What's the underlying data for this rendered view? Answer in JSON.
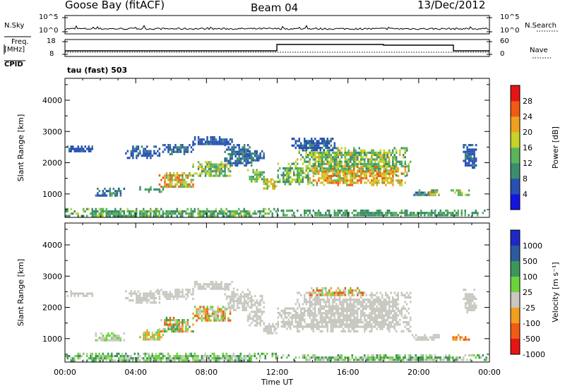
{
  "header": {
    "station": "Goose Bay (fitACF)",
    "beam": "Beam 04",
    "date": "13/Dec/2012"
  },
  "strips": {
    "nsky_label": "N.Sky",
    "nsky_ticks": [
      "10^5",
      "10^0"
    ],
    "nsearch_label": "N.Search",
    "nsearch_ticks": [
      "10^5",
      "10^0"
    ],
    "freq_label": "Freq.",
    "freq_unit": "[MHz]",
    "freq_ticks": [
      "18",
      "8"
    ],
    "nave_label": "Nave",
    "nave_ticks": [
      "60",
      "0"
    ],
    "cpid_label": "CPID",
    "cpid_value": "tau (fast) 503"
  },
  "chart_data": [
    {
      "type": "heatmap",
      "name": "power-panel",
      "ylabel": "Slant Range [km]",
      "xlabel": "",
      "ylim": [
        250,
        4700
      ],
      "yticks": [
        1000,
        2000,
        3000,
        4000
      ],
      "xlim_hours": [
        0,
        24
      ],
      "color_label": "Power [dB]",
      "color_ticks": [
        "4",
        "8",
        "12",
        "16",
        "20",
        "24",
        "28"
      ],
      "colors": [
        "#1414e0",
        "#2850b4",
        "#3c8c6e",
        "#5ab45a",
        "#c8d228",
        "#f0a01e",
        "#f05a14",
        "#e61414"
      ],
      "regions": [
        {
          "t": [
            0,
            12
          ],
          "r": [
            300,
            550
          ],
          "v": [
            8,
            16
          ]
        },
        {
          "t": [
            0.1,
            1.7
          ],
          "r": [
            2350,
            2550
          ],
          "v": [
            4,
            8
          ]
        },
        {
          "t": [
            1.7,
            3.3
          ],
          "r": [
            950,
            1200
          ],
          "v": [
            6,
            12
          ]
        },
        {
          "t": [
            3.4,
            5.3
          ],
          "r": [
            2150,
            2550
          ],
          "v": [
            4,
            8
          ]
        },
        {
          "t": [
            4.2,
            5.5
          ],
          "r": [
            1100,
            1250
          ],
          "v": [
            8,
            14
          ]
        },
        {
          "t": [
            5.3,
            7.2
          ],
          "r": [
            1200,
            1700
          ],
          "v": [
            12,
            26
          ]
        },
        {
          "t": [
            7.2,
            9.3
          ],
          "r": [
            1550,
            2050
          ],
          "v": [
            10,
            20
          ]
        },
        {
          "t": [
            5.2,
            7.2
          ],
          "r": [
            2300,
            2600
          ],
          "v": [
            4,
            8
          ]
        },
        {
          "t": [
            7.2,
            9.5
          ],
          "r": [
            2600,
            2850
          ],
          "v": [
            4,
            8
          ]
        },
        {
          "t": [
            9.0,
            10.5
          ],
          "r": [
            1900,
            2600
          ],
          "v": [
            4,
            10
          ]
        },
        {
          "t": [
            10.3,
            11.2
          ],
          "r": [
            2000,
            2400
          ],
          "v": [
            4,
            10
          ]
        },
        {
          "t": [
            10.3,
            11.2
          ],
          "r": [
            1400,
            1800
          ],
          "v": [
            10,
            18
          ]
        },
        {
          "t": [
            11.2,
            11.9
          ],
          "r": [
            1150,
            1500
          ],
          "v": [
            12,
            22
          ]
        },
        {
          "t": [
            12.0,
            13.7
          ],
          "r": [
            1300,
            2000
          ],
          "v": [
            8,
            18
          ]
        },
        {
          "t": [
            13.0,
            19.5
          ],
          "r": [
            1600,
            2500
          ],
          "v": [
            8,
            20
          ]
        },
        {
          "t": [
            13.8,
            19.2
          ],
          "r": [
            1250,
            1900
          ],
          "v": [
            14,
            26
          ]
        },
        {
          "t": [
            12.8,
            15.2
          ],
          "r": [
            2400,
            2800
          ],
          "v": [
            4,
            8
          ]
        },
        {
          "t": [
            19.6,
            21.1
          ],
          "r": [
            950,
            1150
          ],
          "v": [
            6,
            14
          ]
        },
        {
          "t": [
            20.6,
            21.1
          ],
          "r": [
            1000,
            1100
          ],
          "v": [
            16,
            26
          ]
        },
        {
          "t": [
            21.8,
            22.8
          ],
          "r": [
            950,
            1150
          ],
          "v": [
            12,
            22
          ]
        },
        {
          "t": [
            22.5,
            23.2
          ],
          "r": [
            1850,
            2600
          ],
          "v": [
            4,
            8
          ]
        },
        {
          "t": [
            12.0,
            23.8
          ],
          "r": [
            300,
            500
          ],
          "v": [
            8,
            14
          ]
        }
      ]
    },
    {
      "type": "heatmap",
      "name": "velocity-panel",
      "ylabel": "Slant Range [km]",
      "xlabel": "Time UT",
      "ylim": [
        250,
        4700
      ],
      "yticks": [
        1000,
        2000,
        3000,
        4000
      ],
      "xlim_hours": [
        0,
        24
      ],
      "xticks": [
        "00:00",
        "04:00",
        "08:00",
        "12:00",
        "16:00",
        "20:00",
        "00:00"
      ],
      "color_label": "Velocity [m s⁻¹]",
      "color_ticks": [
        "1000",
        "500",
        "100",
        "25",
        "-25",
        "-100",
        "-500",
        "-1000"
      ],
      "colors": [
        "#1e28c8",
        "#2d5aa0",
        "#3c965a",
        "#6ed23c",
        "#c8c8c0",
        "#f0a01e",
        "#f05a14",
        "#e61414"
      ],
      "regions": [
        {
          "t": [
            0,
            12
          ],
          "r": [
            300,
            550
          ],
          "v": [
            2,
            4
          ]
        },
        {
          "t": [
            0.1,
            1.7
          ],
          "r": [
            2350,
            2550
          ],
          "v": [
            4,
            4
          ]
        },
        {
          "t": [
            1.7,
            3.3
          ],
          "r": [
            950,
            1200
          ],
          "v": [
            3,
            4
          ]
        },
        {
          "t": [
            3.4,
            5.3
          ],
          "r": [
            2150,
            2550
          ],
          "v": [
            4,
            4
          ]
        },
        {
          "t": [
            4.2,
            5.5
          ],
          "r": [
            950,
            1300
          ],
          "v": [
            3,
            5
          ]
        },
        {
          "t": [
            5.3,
            7.2
          ],
          "r": [
            1200,
            1700
          ],
          "v": [
            2,
            6
          ]
        },
        {
          "t": [
            7.2,
            9.3
          ],
          "r": [
            1550,
            2050
          ],
          "v": [
            3,
            6
          ]
        },
        {
          "t": [
            5.2,
            7.2
          ],
          "r": [
            2300,
            2600
          ],
          "v": [
            4,
            4
          ]
        },
        {
          "t": [
            7.2,
            9.5
          ],
          "r": [
            2600,
            2850
          ],
          "v": [
            4,
            4
          ]
        },
        {
          "t": [
            9.0,
            10.5
          ],
          "r": [
            1900,
            2600
          ],
          "v": [
            4,
            4
          ]
        },
        {
          "t": [
            10.3,
            11.2
          ],
          "r": [
            1400,
            2400
          ],
          "v": [
            4,
            4
          ]
        },
        {
          "t": [
            11.2,
            11.9
          ],
          "r": [
            1150,
            1500
          ],
          "v": [
            4,
            4
          ]
        },
        {
          "t": [
            12.0,
            13.7
          ],
          "r": [
            1300,
            2000
          ],
          "v": [
            4,
            4
          ]
        },
        {
          "t": [
            13.0,
            19.5
          ],
          "r": [
            1250,
            2500
          ],
          "v": [
            4,
            4
          ]
        },
        {
          "t": [
            13.8,
            16.8
          ],
          "r": [
            2400,
            2650
          ],
          "v": [
            3,
            6
          ]
        },
        {
          "t": [
            19.6,
            21.1
          ],
          "r": [
            950,
            1150
          ],
          "v": [
            4,
            4
          ]
        },
        {
          "t": [
            21.8,
            22.8
          ],
          "r": [
            950,
            1150
          ],
          "v": [
            5,
            6
          ]
        },
        {
          "t": [
            22.5,
            23.2
          ],
          "r": [
            1850,
            2600
          ],
          "v": [
            4,
            4
          ]
        },
        {
          "t": [
            12.0,
            23.8
          ],
          "r": [
            300,
            500
          ],
          "v": [
            2,
            4
          ]
        }
      ]
    }
  ]
}
